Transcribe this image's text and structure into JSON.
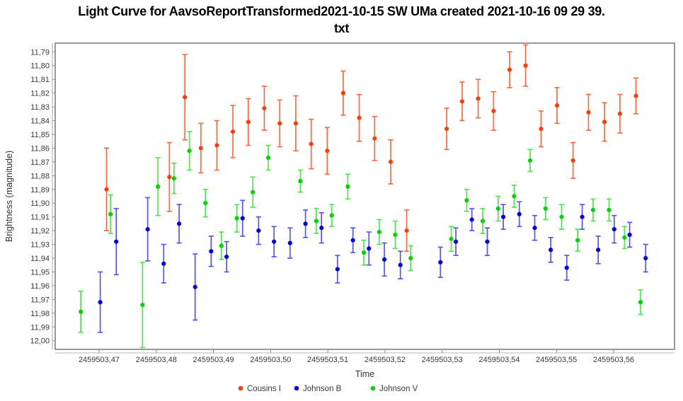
{
  "title": {
    "line1": "Light Curve for AavsoReportTransformed2021-10-15 SW UMa created 2021-10-16 09 29 39.",
    "line2": "txt"
  },
  "chart_data": {
    "type": "scatter",
    "subtype": "light-curve-with-error-bars",
    "grid": false,
    "background_color": "#ffffff",
    "frame_color": "#7f7f7f",
    "legend_position": "bottom-center",
    "decimal_separator": ",",
    "x_axis": {
      "label": "Time",
      "tick_values": [
        2459503.47,
        2459503.48,
        2459503.49,
        2459503.5,
        2459503.51,
        2459503.52,
        2459503.53,
        2459503.54,
        2459503.55,
        2459503.56
      ],
      "tick_labels": [
        "2459503,47",
        "2459503,48",
        "2459503,49",
        "2459503,50",
        "2459503,51",
        "2459503,52",
        "2459503,53",
        "2459503,54",
        "2459503,55",
        "2459503,56"
      ]
    },
    "y_axis": {
      "label": "Brightness (magnitude)",
      "inverted": true,
      "range": [
        11.79,
        12.0
      ],
      "tick_values": [
        11.79,
        11.8,
        11.81,
        11.82,
        11.83,
        11.84,
        11.85,
        11.86,
        11.87,
        11.88,
        11.89,
        11.9,
        11.91,
        11.92,
        11.93,
        11.94,
        11.95,
        11.96,
        11.97,
        11.98,
        11.99,
        12.0
      ],
      "tick_labels": [
        "11,79",
        "11,80",
        "11,81",
        "11,82",
        "11,83",
        "11,84",
        "11,85",
        "11,86",
        "11,87",
        "11,88",
        "11,89",
        "11,90",
        "11,91",
        "11,92",
        "11,93",
        "11,94",
        "11,95",
        "11,96",
        "11,97",
        "11,98",
        "11,99",
        "12,00"
      ]
    },
    "series": [
      {
        "name": "Cousins I",
        "marker_color": "#ff3d0a",
        "bar_color": "#ff6a3a",
        "points": [
          [
            2459503.4713,
            11.89,
            0.03
          ],
          [
            2459503.4823,
            11.881,
            0.025
          ],
          [
            2459503.485,
            11.823,
            0.031
          ],
          [
            2459503.4878,
            11.86,
            0.018
          ],
          [
            2459503.4906,
            11.858,
            0.018
          ],
          [
            2459503.4934,
            11.848,
            0.019
          ],
          [
            2459503.4961,
            11.841,
            0.017
          ],
          [
            2459503.4989,
            11.831,
            0.016
          ],
          [
            2459503.5016,
            11.842,
            0.017
          ],
          [
            2459503.5044,
            11.842,
            0.02
          ],
          [
            2459503.5071,
            11.857,
            0.018
          ],
          [
            2459503.5099,
            11.862,
            0.017
          ],
          [
            2459503.5127,
            11.82,
            0.016
          ],
          [
            2459503.5155,
            11.838,
            0.017
          ],
          [
            2459503.5182,
            11.853,
            0.016
          ],
          [
            2459503.521,
            11.87,
            0.016
          ],
          [
            2459503.5238,
            11.92,
            0.015
          ],
          [
            2459503.5308,
            11.846,
            0.015
          ],
          [
            2459503.5335,
            11.826,
            0.014
          ],
          [
            2459503.5363,
            11.824,
            0.014
          ],
          [
            2459503.539,
            11.833,
            0.014
          ],
          [
            2459503.5418,
            11.803,
            0.013
          ],
          [
            2459503.5446,
            11.8,
            0.015
          ],
          [
            2459503.5473,
            11.846,
            0.013
          ],
          [
            2459503.5501,
            11.829,
            0.013
          ],
          [
            2459503.5529,
            11.869,
            0.013
          ],
          [
            2459503.5556,
            11.834,
            0.013
          ],
          [
            2459503.5584,
            11.841,
            0.014
          ],
          [
            2459503.5611,
            11.835,
            0.014
          ],
          [
            2459503.5639,
            11.822,
            0.013
          ]
        ]
      },
      {
        "name": "Johnson B",
        "marker_color": "#0000dd",
        "bar_color": "#5555ff",
        "points": [
          [
            2459503.4702,
            11.972,
            0.022
          ],
          [
            2459503.473,
            11.928,
            0.024
          ],
          [
            2459503.4785,
            11.919,
            0.023
          ],
          [
            2459503.4813,
            11.944,
            0.014
          ],
          [
            2459503.484,
            11.915,
            0.014
          ],
          [
            2459503.4868,
            11.961,
            0.024
          ],
          [
            2459503.4896,
            11.935,
            0.011
          ],
          [
            2459503.4923,
            11.939,
            0.011
          ],
          [
            2459503.4951,
            11.911,
            0.013
          ],
          [
            2459503.4979,
            11.92,
            0.01
          ],
          [
            2459503.5006,
            11.928,
            0.011
          ],
          [
            2459503.5034,
            11.929,
            0.011
          ],
          [
            2459503.5061,
            11.915,
            0.01
          ],
          [
            2459503.5089,
            11.918,
            0.011
          ],
          [
            2459503.5117,
            11.948,
            0.01
          ],
          [
            2459503.5144,
            11.927,
            0.009
          ],
          [
            2459503.5172,
            11.933,
            0.012
          ],
          [
            2459503.5199,
            11.941,
            0.012
          ],
          [
            2459503.5227,
            11.945,
            0.01
          ],
          [
            2459503.5297,
            11.943,
            0.011
          ],
          [
            2459503.5324,
            11.928,
            0.01
          ],
          [
            2459503.5352,
            11.912,
            0.008
          ],
          [
            2459503.5379,
            11.928,
            0.01
          ],
          [
            2459503.5407,
            11.91,
            0.009
          ],
          [
            2459503.5435,
            11.908,
            0.009
          ],
          [
            2459503.5462,
            11.918,
            0.009
          ],
          [
            2459503.549,
            11.934,
            0.009
          ],
          [
            2459503.5518,
            11.947,
            0.009
          ],
          [
            2459503.5545,
            11.91,
            0.009
          ],
          [
            2459503.5573,
            11.934,
            0.01
          ],
          [
            2459503.5601,
            11.919,
            0.01
          ],
          [
            2459503.5628,
            11.923,
            0.009
          ],
          [
            2459503.5656,
            11.94,
            0.01
          ]
        ]
      },
      {
        "name": "Johnson V",
        "marker_color": "#00d400",
        "bar_color": "#4ce84c",
        "points": [
          [
            2459503.4668,
            11.979,
            0.015
          ],
          [
            2459503.472,
            11.908,
            0.014
          ],
          [
            2459503.4776,
            11.974,
            0.031
          ],
          [
            2459503.4803,
            11.888,
            0.021
          ],
          [
            2459503.4831,
            11.882,
            0.011
          ],
          [
            2459503.4858,
            11.862,
            0.014
          ],
          [
            2459503.4886,
            11.9,
            0.01
          ],
          [
            2459503.4914,
            11.931,
            0.01
          ],
          [
            2459503.4941,
            11.911,
            0.01
          ],
          [
            2459503.4969,
            11.892,
            0.011
          ],
          [
            2459503.4996,
            11.867,
            0.009
          ],
          [
            2459503.5052,
            11.884,
            0.008
          ],
          [
            2459503.508,
            11.913,
            0.009
          ],
          [
            2459503.5107,
            11.909,
            0.008
          ],
          [
            2459503.5135,
            11.888,
            0.009
          ],
          [
            2459503.5163,
            11.936,
            0.009
          ],
          [
            2459503.519,
            11.921,
            0.009
          ],
          [
            2459503.5218,
            11.923,
            0.01
          ],
          [
            2459503.5245,
            11.94,
            0.009
          ],
          [
            2459503.5316,
            11.926,
            0.009
          ],
          [
            2459503.5343,
            11.898,
            0.008
          ],
          [
            2459503.5371,
            11.913,
            0.009
          ],
          [
            2459503.5398,
            11.904,
            0.009
          ],
          [
            2459503.5426,
            11.895,
            0.008
          ],
          [
            2459503.5454,
            11.869,
            0.008
          ],
          [
            2459503.5481,
            11.904,
            0.008
          ],
          [
            2459503.5509,
            11.91,
            0.009
          ],
          [
            2459503.5537,
            11.927,
            0.008
          ],
          [
            2459503.5564,
            11.905,
            0.008
          ],
          [
            2459503.5592,
            11.905,
            0.008
          ],
          [
            2459503.5619,
            11.925,
            0.008
          ],
          [
            2459503.5647,
            11.972,
            0.009
          ]
        ]
      }
    ]
  }
}
